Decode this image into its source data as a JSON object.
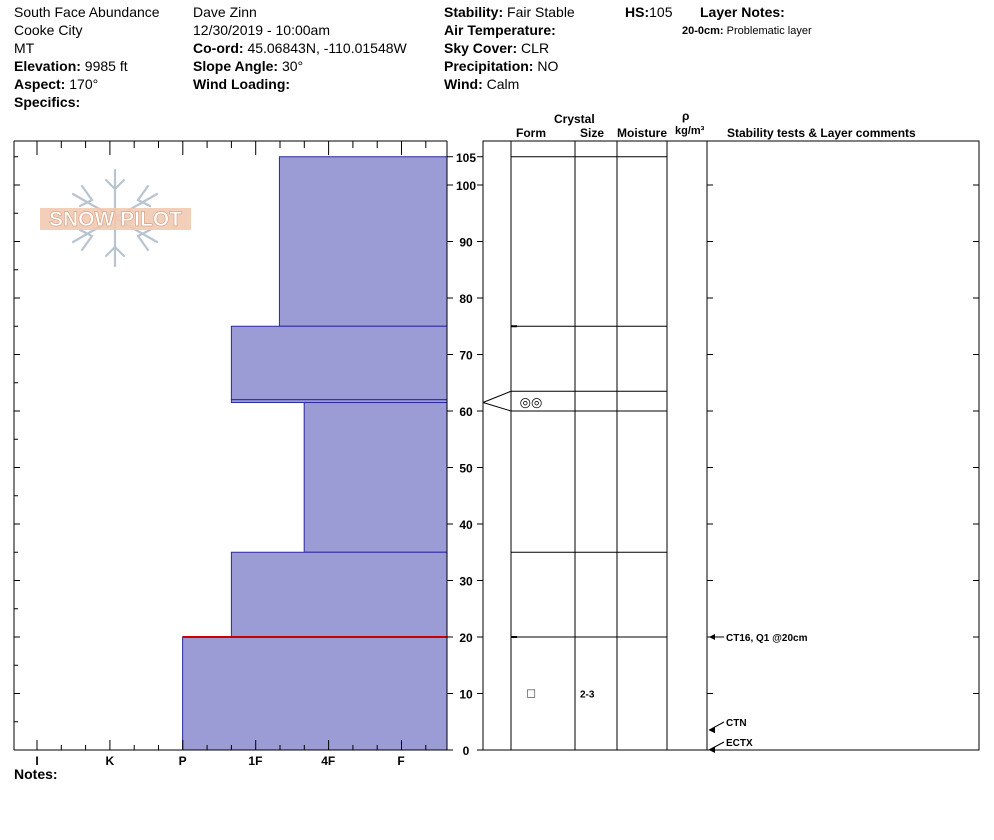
{
  "header": {
    "location": "South Face Abundance",
    "area": "Cooke City",
    "state": "MT",
    "elevation_label": "Elevation:",
    "elevation": "9985 ft",
    "aspect_label": "Aspect:",
    "aspect": "170°",
    "specifics_label": "Specifics:",
    "observer": "Dave Zinn",
    "datetime": "12/30/2019 - 10:00am",
    "coord_label": "Co-ord:",
    "coord": "45.06843N, -110.01548W",
    "slope_label": "Slope Angle:",
    "slope": "30°",
    "wind_loading_label": "Wind Loading:",
    "stability_label": "Stability:",
    "stability": "Fair Stable",
    "air_temp_label": "Air Temperature:",
    "sky_label": "Sky Cover:",
    "sky": "CLR",
    "precip_label": "Precipitation:",
    "precip": "NO",
    "wind_label": "Wind:",
    "wind": "Calm",
    "hs_label": "HS:",
    "hs": "105",
    "layer_notes_label": "Layer Notes:",
    "layer_note_depth": "20-0cm:",
    "layer_note_text": "Problematic layer"
  },
  "logo_text": "SNOW PILOT",
  "notes_label": "Notes:",
  "columns": {
    "crystal": "Crystal",
    "form": "Form",
    "size": "Size",
    "moisture": "Moisture",
    "rho": "ρ",
    "density_unit": "kg/m³",
    "stability": "Stability tests & Layer comments"
  },
  "colors": {
    "layer_fill": "#9b9bd6",
    "layer_stroke": "#2a2aa0",
    "problem_line": "#cc0000"
  },
  "chart_data": {
    "type": "bar",
    "orientation": "horizontal-profile",
    "description_axis_y": "height (cm)",
    "y_ticks": [
      0,
      10,
      20,
      30,
      40,
      50,
      60,
      70,
      80,
      90,
      100,
      105
    ],
    "ylim": [
      0,
      108
    ],
    "hardness_scale": [
      "I",
      "K",
      "P",
      "1F",
      "4F",
      "F"
    ],
    "layers": [
      {
        "bottom": 75,
        "top": 105,
        "hardness": 3.33
      },
      {
        "bottom": 62,
        "top": 75,
        "hardness": 2.67
      },
      {
        "bottom": 61.5,
        "top": 62,
        "hardness": 2.67
      },
      {
        "bottom": 35,
        "top": 61.5,
        "hardness": 3.67
      },
      {
        "bottom": 20,
        "top": 35,
        "hardness": 2.67
      },
      {
        "bottom": 0,
        "top": 20,
        "hardness": 2.0
      }
    ],
    "problem_depth": 20,
    "crystal_boundaries": [
      105,
      75,
      63.5,
      60,
      35,
      20
    ],
    "crystal_forms": [
      {
        "height": 61.5,
        "symbol": "◎◎",
        "size": ""
      },
      {
        "height": 10,
        "symbol": "□",
        "size": "2-3"
      }
    ],
    "stability_tests": [
      {
        "height": 20,
        "label": "CT16, Q1 @20cm"
      },
      {
        "height": 3.5,
        "label": "CTN"
      },
      {
        "height": 0,
        "label": "ECTX"
      }
    ]
  }
}
